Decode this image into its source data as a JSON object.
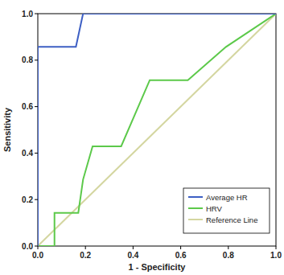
{
  "chart_data": {
    "type": "line",
    "x_label": "1 - Specificity",
    "y_label": "Sensitivity",
    "xlim": [
      0,
      1
    ],
    "ylim": [
      0,
      1
    ],
    "xticks": [
      {
        "value": 0,
        "label": "0.0"
      },
      0.2,
      0.4,
      0.6,
      0.8,
      {
        "value": 1,
        "label": "1.0"
      }
    ],
    "yticks": [
      {
        "value": 0,
        "label": "0.0"
      },
      0.2,
      0.4,
      0.6,
      0.8,
      {
        "value": 1,
        "label": "1.0"
      }
    ],
    "grid": false,
    "legend": "bottom-right",
    "series": [
      {
        "name": "Average HR",
        "color": "#3d5fc4",
        "x": [
          0,
          0,
          0.16,
          0.19,
          1
        ],
        "values": [
          0,
          0.857,
          0.857,
          1,
          1
        ]
      },
      {
        "name": "HRV",
        "color": "#5cc94a",
        "x": [
          0,
          0.07,
          0.07,
          0.17,
          0.19,
          0.23,
          0.35,
          0.47,
          0.63,
          0.79,
          1
        ],
        "values": [
          0,
          0,
          0.143,
          0.143,
          0.286,
          0.429,
          0.429,
          0.714,
          0.714,
          0.857,
          1
        ]
      },
      {
        "name": "Reference Line",
        "color": "#d4d6a0",
        "x": [
          0,
          1
        ],
        "values": [
          0,
          1
        ]
      }
    ]
  }
}
